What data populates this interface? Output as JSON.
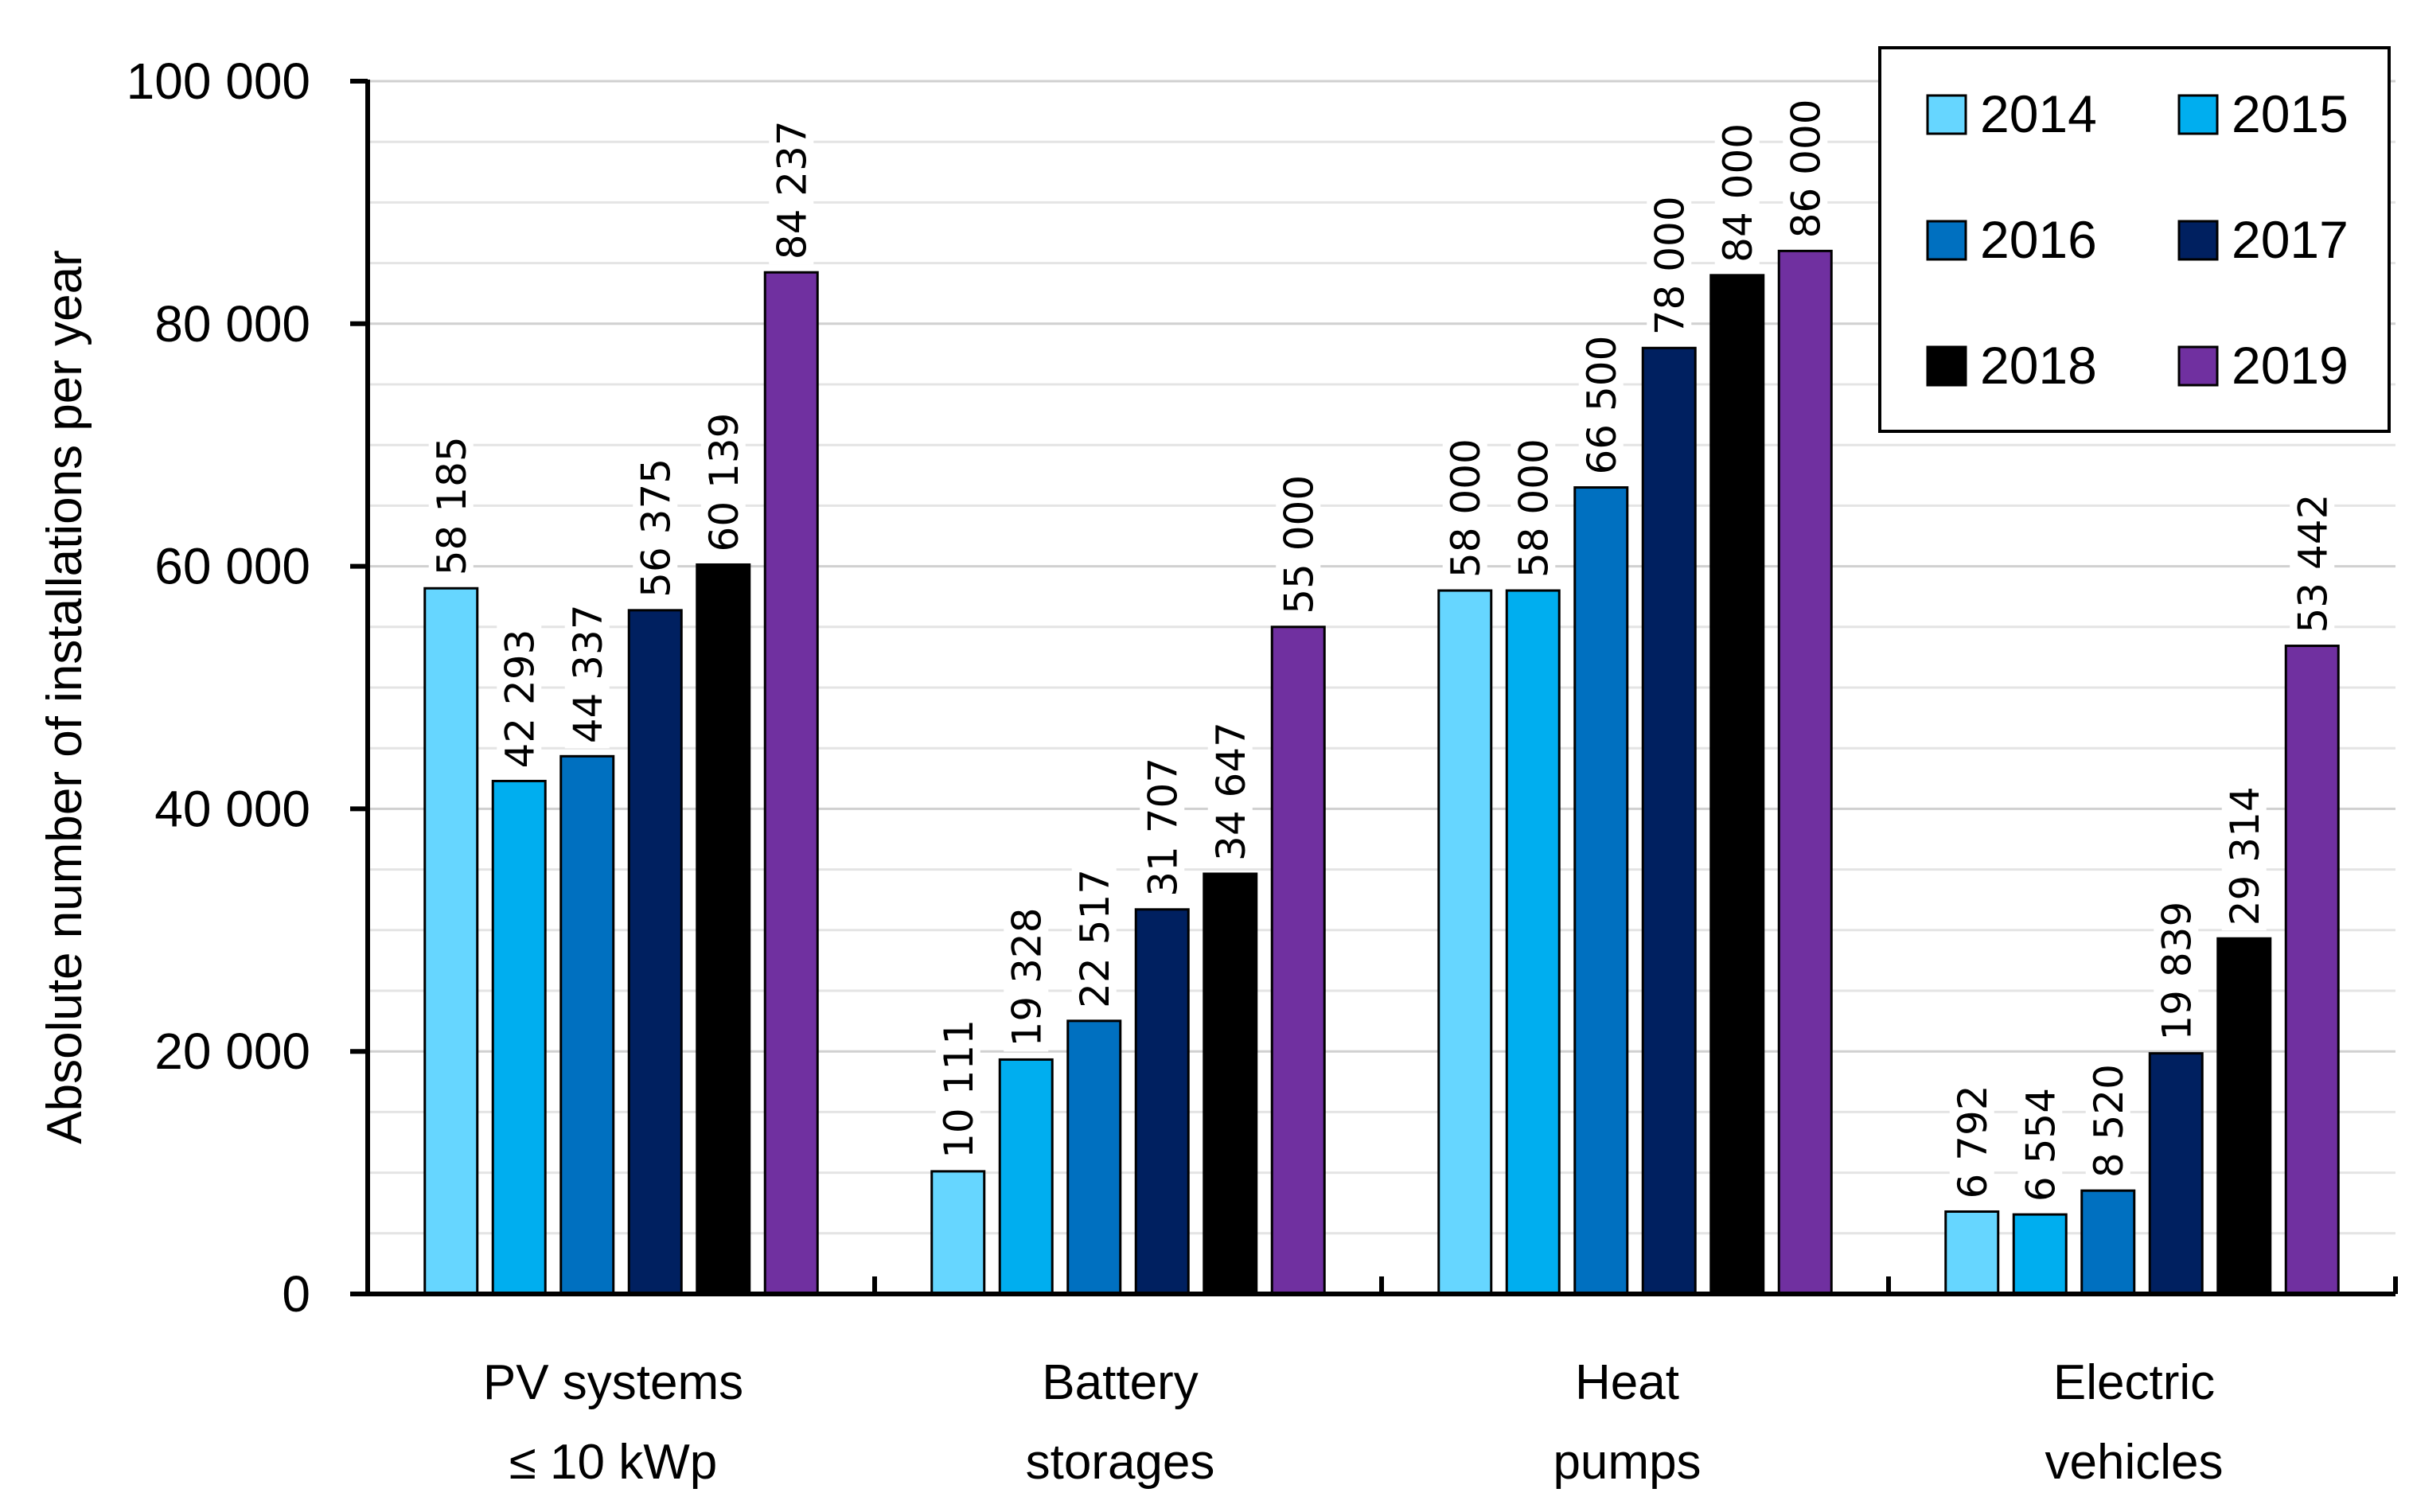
{
  "chart_data": {
    "type": "bar",
    "title": "",
    "xlabel": "",
    "ylabel": "Absolute number  of installations per year",
    "ylim": [
      0,
      100000
    ],
    "yticks": [
      0,
      20000,
      40000,
      60000,
      80000,
      100000
    ],
    "ytick_labels": [
      "0",
      "20 000",
      "40 000",
      "60 000",
      "80 000",
      "100 000"
    ],
    "categories": [
      [
        "PV systems",
        "≤ 10 kWp"
      ],
      [
        "Battery",
        "storages"
      ],
      [
        "Heat",
        "pumps"
      ],
      [
        "Electric",
        "vehicles"
      ]
    ],
    "series": [
      {
        "name": "2014",
        "color": "#66D6FF",
        "values": [
          58185,
          10111,
          58000,
          6792
        ],
        "labels": [
          "58 185",
          "10 111",
          "58 000",
          "6 792"
        ]
      },
      {
        "name": "2015",
        "color": "#00AEEF",
        "values": [
          42293,
          19328,
          58000,
          6554
        ],
        "labels": [
          "42 293",
          "19 328",
          "58 000",
          "6 554"
        ]
      },
      {
        "name": "2016",
        "color": "#0070C0",
        "values": [
          44337,
          22517,
          66500,
          8520
        ],
        "labels": [
          "44 337",
          "22 517",
          "66 500",
          "8 520"
        ]
      },
      {
        "name": "2017",
        "color": "#002060",
        "values": [
          56375,
          31707,
          78000,
          19839
        ],
        "labels": [
          "56 375",
          "31 707",
          "78 000",
          "19 839"
        ]
      },
      {
        "name": "2018",
        "color": "#000000",
        "values": [
          60139,
          34647,
          84000,
          29314
        ],
        "labels": [
          "60 139",
          "34 647",
          "84 000",
          "29 314"
        ]
      },
      {
        "name": "2019",
        "color": "#7030A0",
        "values": [
          84237,
          55000,
          86000,
          53442
        ],
        "labels": [
          "84 237",
          "55 000",
          "86 000",
          "53 442"
        ]
      }
    ],
    "legend_position": "top-right",
    "grid": true
  }
}
